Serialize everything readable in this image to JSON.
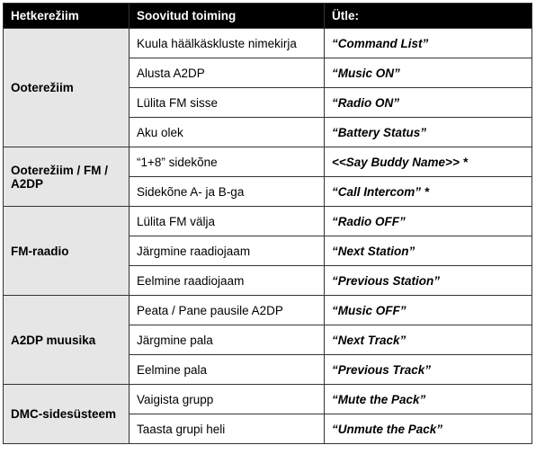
{
  "header": [
    "Hetkerežiim",
    "Soovitud toiming",
    "Ütle:"
  ],
  "groups": [
    {
      "label": "Ooterežiim",
      "rows": [
        [
          "Kuula häälkäskluste nimekirja",
          "“Command List”"
        ],
        [
          "Alusta A2DP",
          "“Music ON”"
        ],
        [
          "Lülita FM sisse",
          "“Radio ON”"
        ],
        [
          "Aku olek",
          "“Battery Status”"
        ]
      ]
    },
    {
      "label": "Ooterežiim / FM / A2DP",
      "rows": [
        [
          "“1+8” sidekõne",
          "<<Say Buddy Name>> *"
        ],
        [
          "Sidekõne A- ja B-ga",
          "“Call Intercom” *"
        ]
      ]
    },
    {
      "label": "FM-raadio",
      "rows": [
        [
          "Lülita FM välja",
          "“Radio OFF”"
        ],
        [
          "Järgmine raadiojaam",
          "“Next Station”"
        ],
        [
          "Eelmine raadiojaam",
          "“Previous Station”"
        ]
      ]
    },
    {
      "label": "A2DP muusika",
      "rows": [
        [
          "Peata / Pane pausile A2DP",
          "“Music OFF”"
        ],
        [
          "Järgmine pala",
          "“Next Track”"
        ],
        [
          "Eelmine pala",
          "“Previous Track”"
        ]
      ]
    },
    {
      "label": "DMC-sidesüsteem",
      "rows": [
        [
          "Vaigista grupp",
          "“Mute the Pack”"
        ],
        [
          "Taasta grupi heli",
          "“Unmute the Pack”"
        ]
      ]
    }
  ]
}
